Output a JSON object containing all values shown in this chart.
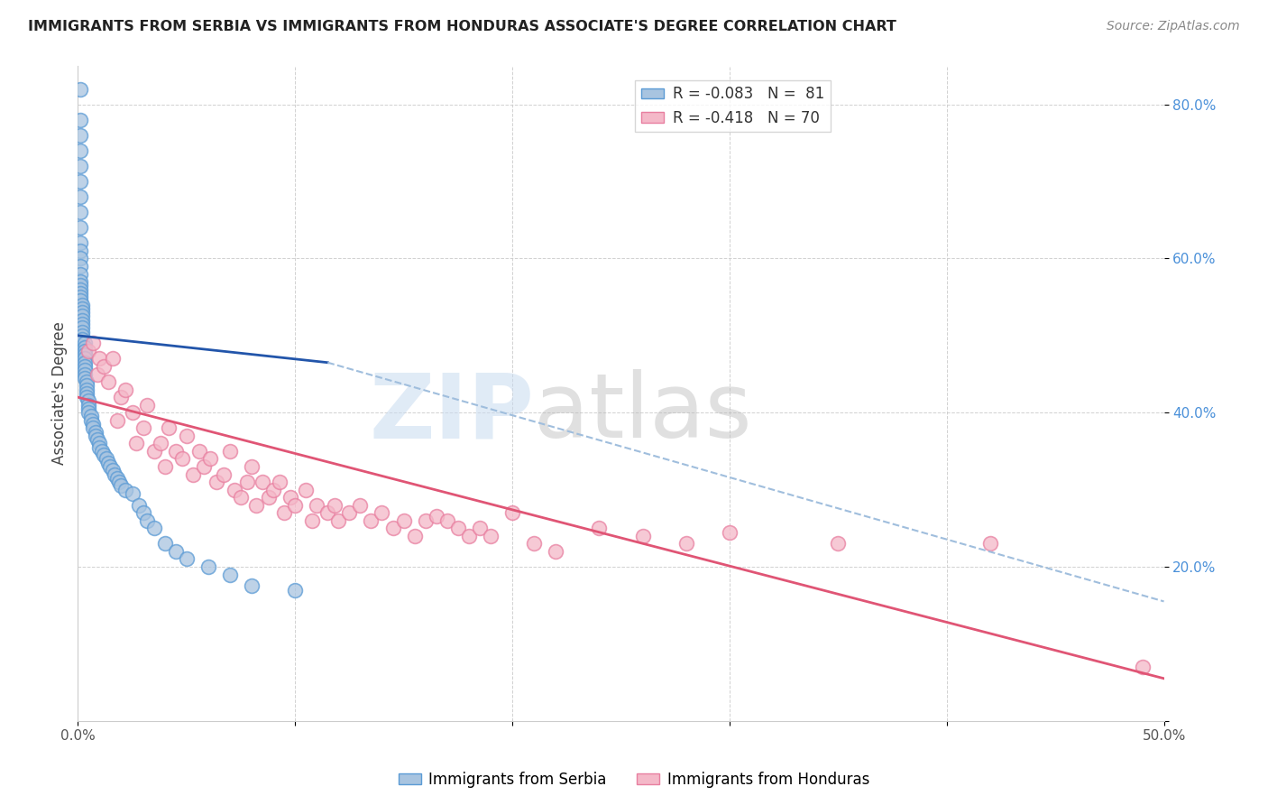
{
  "title": "IMMIGRANTS FROM SERBIA VS IMMIGRANTS FROM HONDURAS ASSOCIATE'S DEGREE CORRELATION CHART",
  "source": "Source: ZipAtlas.com",
  "ylabel": "Associate's Degree",
  "xlim": [
    0.0,
    0.5
  ],
  "ylim": [
    0.0,
    0.85
  ],
  "serbia_color": "#a8c4e0",
  "serbia_edge_color": "#5b9bd5",
  "honduras_color": "#f4b8c8",
  "honduras_edge_color": "#e87fa0",
  "trend_serbia_color": "#2255aa",
  "trend_honduras_color": "#e05575",
  "trend_serbia_dashed_color": "#a0bedd",
  "legend_R_serbia": "R = -0.083",
  "legend_N_serbia": "N =  81",
  "legend_R_honduras": "R = -0.418",
  "legend_N_honduras": "N = 70",
  "serbia_x": [
    0.001,
    0.001,
    0.001,
    0.001,
    0.001,
    0.001,
    0.001,
    0.001,
    0.001,
    0.001,
    0.001,
    0.001,
    0.001,
    0.001,
    0.001,
    0.001,
    0.001,
    0.001,
    0.001,
    0.001,
    0.002,
    0.002,
    0.002,
    0.002,
    0.002,
    0.002,
    0.002,
    0.002,
    0.002,
    0.002,
    0.003,
    0.003,
    0.003,
    0.003,
    0.003,
    0.003,
    0.003,
    0.003,
    0.003,
    0.003,
    0.004,
    0.004,
    0.004,
    0.004,
    0.004,
    0.005,
    0.005,
    0.005,
    0.005,
    0.006,
    0.006,
    0.007,
    0.007,
    0.008,
    0.008,
    0.009,
    0.01,
    0.01,
    0.011,
    0.012,
    0.013,
    0.014,
    0.015,
    0.016,
    0.017,
    0.018,
    0.019,
    0.02,
    0.022,
    0.025,
    0.028,
    0.03,
    0.032,
    0.035,
    0.04,
    0.045,
    0.05,
    0.06,
    0.07,
    0.08,
    0.1
  ],
  "serbia_y": [
    0.82,
    0.78,
    0.76,
    0.74,
    0.72,
    0.7,
    0.68,
    0.66,
    0.64,
    0.62,
    0.61,
    0.6,
    0.59,
    0.58,
    0.57,
    0.565,
    0.56,
    0.555,
    0.55,
    0.545,
    0.54,
    0.535,
    0.53,
    0.525,
    0.52,
    0.515,
    0.51,
    0.505,
    0.5,
    0.495,
    0.49,
    0.485,
    0.48,
    0.475,
    0.47,
    0.465,
    0.46,
    0.455,
    0.45,
    0.445,
    0.44,
    0.435,
    0.43,
    0.425,
    0.42,
    0.415,
    0.41,
    0.405,
    0.4,
    0.395,
    0.39,
    0.385,
    0.38,
    0.375,
    0.37,
    0.365,
    0.36,
    0.355,
    0.35,
    0.345,
    0.34,
    0.335,
    0.33,
    0.325,
    0.32,
    0.315,
    0.31,
    0.305,
    0.3,
    0.295,
    0.28,
    0.27,
    0.26,
    0.25,
    0.23,
    0.22,
    0.21,
    0.2,
    0.19,
    0.175,
    0.17
  ],
  "honduras_x": [
    0.005,
    0.007,
    0.009,
    0.01,
    0.012,
    0.014,
    0.016,
    0.018,
    0.02,
    0.022,
    0.025,
    0.027,
    0.03,
    0.032,
    0.035,
    0.038,
    0.04,
    0.042,
    0.045,
    0.048,
    0.05,
    0.053,
    0.056,
    0.058,
    0.061,
    0.064,
    0.067,
    0.07,
    0.072,
    0.075,
    0.078,
    0.08,
    0.082,
    0.085,
    0.088,
    0.09,
    0.093,
    0.095,
    0.098,
    0.1,
    0.105,
    0.108,
    0.11,
    0.115,
    0.118,
    0.12,
    0.125,
    0.13,
    0.135,
    0.14,
    0.145,
    0.15,
    0.155,
    0.16,
    0.165,
    0.17,
    0.175,
    0.18,
    0.185,
    0.19,
    0.2,
    0.21,
    0.22,
    0.24,
    0.26,
    0.28,
    0.3,
    0.35,
    0.42,
    0.49
  ],
  "honduras_y": [
    0.48,
    0.49,
    0.45,
    0.47,
    0.46,
    0.44,
    0.47,
    0.39,
    0.42,
    0.43,
    0.4,
    0.36,
    0.38,
    0.41,
    0.35,
    0.36,
    0.33,
    0.38,
    0.35,
    0.34,
    0.37,
    0.32,
    0.35,
    0.33,
    0.34,
    0.31,
    0.32,
    0.35,
    0.3,
    0.29,
    0.31,
    0.33,
    0.28,
    0.31,
    0.29,
    0.3,
    0.31,
    0.27,
    0.29,
    0.28,
    0.3,
    0.26,
    0.28,
    0.27,
    0.28,
    0.26,
    0.27,
    0.28,
    0.26,
    0.27,
    0.25,
    0.26,
    0.24,
    0.26,
    0.265,
    0.26,
    0.25,
    0.24,
    0.25,
    0.24,
    0.27,
    0.23,
    0.22,
    0.25,
    0.24,
    0.23,
    0.245,
    0.23,
    0.23,
    0.07
  ],
  "serbia_trend_x0": 0.0,
  "serbia_trend_x_solid_end": 0.115,
  "serbia_trend_x_dashed_end": 0.5,
  "serbia_trend_y0": 0.5,
  "serbia_trend_y_solid_end": 0.465,
  "serbia_trend_y_dashed_end": 0.155,
  "honduras_trend_x0": 0.0,
  "honduras_trend_x_end": 0.5,
  "honduras_trend_y0": 0.42,
  "honduras_trend_y_end": 0.055
}
